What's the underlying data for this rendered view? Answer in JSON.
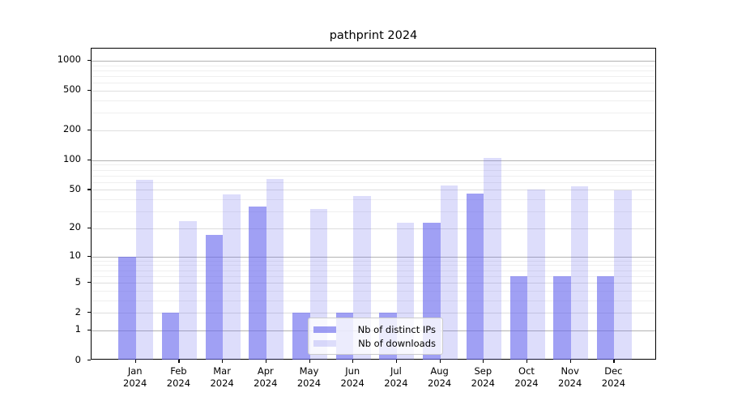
{
  "title": "pathprint 2024",
  "chart_data": {
    "type": "bar",
    "title": "pathprint 2024",
    "categories": [
      "Jan",
      "Feb",
      "Mar",
      "Apr",
      "May",
      "Jun",
      "Jul",
      "Aug",
      "Sep",
      "Oct",
      "Nov",
      "Dec"
    ],
    "category_year": "2024",
    "series": [
      {
        "name": "Nb of distinct IPs",
        "values": [
          10,
          2,
          17,
          34,
          2,
          2,
          2,
          23,
          46,
          6,
          6,
          6
        ]
      },
      {
        "name": "Nb of downloads",
        "values": [
          63,
          24,
          45,
          64,
          32,
          43,
          23,
          55,
          105,
          50,
          54,
          49
        ]
      }
    ],
    "yscale": "log1p",
    "ylim": [
      0,
      1320
    ],
    "yticks": [
      0,
      1,
      2,
      5,
      10,
      20,
      50,
      100,
      200,
      500,
      1000
    ],
    "xlabel": "",
    "ylabel": "",
    "grid": true,
    "legend_position": "inside lower-center",
    "colors": {
      "bar_base": "#6565ee",
      "ips_fill_alpha": "0.62",
      "downloads_fill_alpha": "0.22",
      "grid_major": "#b3b3b3",
      "grid_minor": "#efefef",
      "axis": "#000000",
      "background": "#ffffff"
    }
  }
}
